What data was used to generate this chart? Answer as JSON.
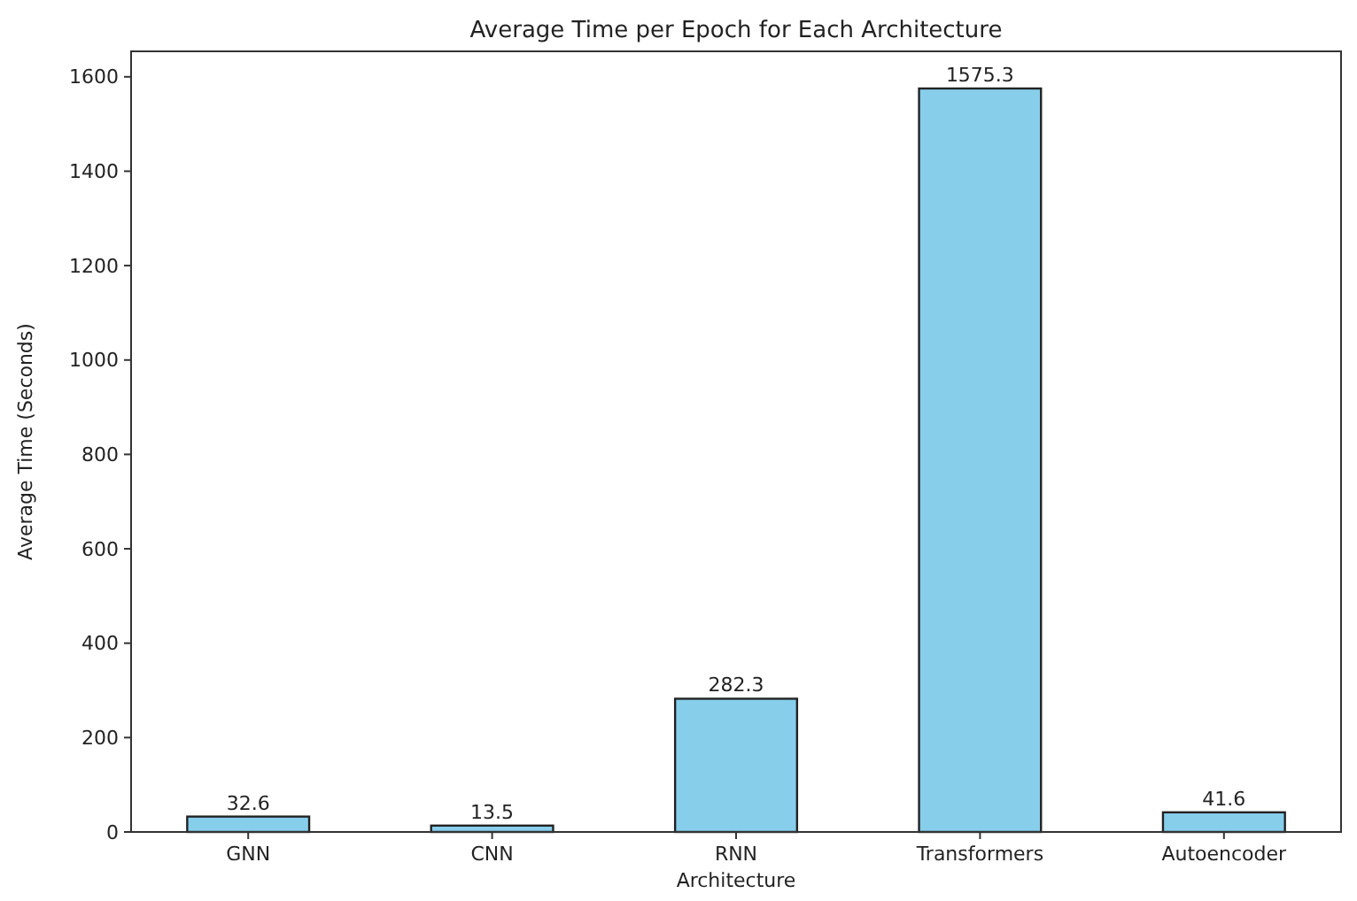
{
  "chart_data": {
    "type": "bar",
    "title": "Average Time per Epoch for Each Architecture",
    "xlabel": "Architecture",
    "ylabel": "Average Time (Seconds)",
    "categories": [
      "GNN",
      "CNN",
      "RNN",
      "Transformers",
      "Autoencoder"
    ],
    "values": [
      32.6,
      13.5,
      282.3,
      1575.3,
      41.6
    ],
    "color": "#87ceeb",
    "ylim": [
      0,
      1654
    ],
    "yticks": [
      0,
      200,
      400,
      600,
      800,
      1000,
      1200,
      1400,
      1600
    ],
    "data_labels": true,
    "grid": false
  }
}
